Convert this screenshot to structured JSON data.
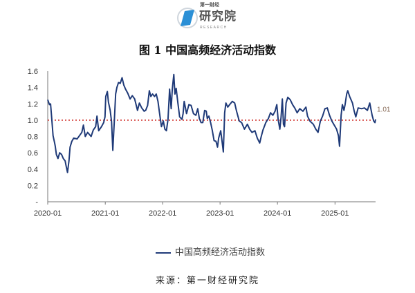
{
  "logo": {
    "line1": "第一财经",
    "line2": "研究院",
    "line3": "RESEARCH",
    "accent": "#2a8fd6"
  },
  "title": "图 1  中国高频经济活动指数",
  "source": "来源：第一财经研究院",
  "chart_data": {
    "type": "line",
    "title": "图 1  中国高频经济活动指数",
    "xlabel": "",
    "ylabel": "",
    "xlim": [
      "2020-01-01",
      "2025-09-16"
    ],
    "ylim": [
      0,
      1.6
    ],
    "x_ticks": [
      "2020-01",
      "2021-01",
      "2022-01",
      "2023-01",
      "2024-01",
      "2025-01"
    ],
    "y_ticks": [
      {
        "v": 0,
        "label": "-"
      },
      {
        "v": 0.2,
        "label": "0.2"
      },
      {
        "v": 0.4,
        "label": "0.4"
      },
      {
        "v": 0.6,
        "label": "0.6"
      },
      {
        "v": 0.8,
        "label": "0.8"
      },
      {
        "v": 1.0,
        "label": "1.0"
      },
      {
        "v": 1.2,
        "label": "1.2"
      },
      {
        "v": 1.4,
        "label": "1.4"
      },
      {
        "v": 1.6,
        "label": "1.6"
      }
    ],
    "grid": false,
    "legend": "bottom",
    "reference_line": {
      "y": 1.0,
      "color": "#d9534f",
      "style": "dotted"
    },
    "last_value_label": "1.01",
    "series": [
      {
        "name": "中国高频经济活动指数",
        "color": "#1f3a78",
        "points": [
          [
            "2020-01-01",
            1.25
          ],
          [
            "2020-01-12",
            1.19
          ],
          [
            "2020-01-19",
            1.2
          ],
          [
            "2020-01-27",
            1.01
          ],
          [
            "2020-02-04",
            0.81
          ],
          [
            "2020-02-14",
            0.72
          ],
          [
            "2020-02-18",
            0.68
          ],
          [
            "2020-02-25",
            0.58
          ],
          [
            "2020-03-06",
            0.53
          ],
          [
            "2020-03-17",
            0.6
          ],
          [
            "2020-03-29",
            0.58
          ],
          [
            "2020-04-09",
            0.53
          ],
          [
            "2020-04-21",
            0.5
          ],
          [
            "2020-04-28",
            0.43
          ],
          [
            "2020-05-06",
            0.36
          ],
          [
            "2020-05-15",
            0.5
          ],
          [
            "2020-05-22",
            0.67
          ],
          [
            "2020-06-02",
            0.74
          ],
          [
            "2020-06-14",
            0.78
          ],
          [
            "2020-07-06",
            0.77
          ],
          [
            "2020-07-21",
            0.81
          ],
          [
            "2020-08-05",
            0.85
          ],
          [
            "2020-08-15",
            0.94
          ],
          [
            "2020-08-27",
            0.8
          ],
          [
            "2020-09-11",
            0.85
          ],
          [
            "2020-10-03",
            0.8
          ],
          [
            "2020-10-17",
            0.88
          ],
          [
            "2020-11-01",
            0.92
          ],
          [
            "2020-11-09",
            1.05
          ],
          [
            "2020-11-20",
            0.87
          ],
          [
            "2020-12-08",
            0.92
          ],
          [
            "2020-12-22",
            0.97
          ],
          [
            "2020-12-30",
            1.04
          ],
          [
            "2021-01-04",
            1.29
          ],
          [
            "2021-01-14",
            1.35
          ],
          [
            "2021-01-21",
            1.22
          ],
          [
            "2021-02-01",
            1.12
          ],
          [
            "2021-02-10",
            0.98
          ],
          [
            "2021-02-18",
            0.63
          ],
          [
            "2021-02-28",
            1.01
          ],
          [
            "2021-03-08",
            1.32
          ],
          [
            "2021-03-16",
            1.4
          ],
          [
            "2021-03-26",
            1.46
          ],
          [
            "2021-04-06",
            1.45
          ],
          [
            "2021-04-18",
            1.52
          ],
          [
            "2021-04-29",
            1.43
          ],
          [
            "2021-05-10",
            1.38
          ],
          [
            "2021-05-24",
            1.33
          ],
          [
            "2021-06-08",
            1.26
          ],
          [
            "2021-06-22",
            1.3
          ],
          [
            "2021-07-07",
            1.26
          ],
          [
            "2021-07-25",
            1.12
          ],
          [
            "2021-08-06",
            1.21
          ],
          [
            "2021-08-21",
            1.15
          ],
          [
            "2021-09-05",
            1.11
          ],
          [
            "2021-09-15",
            1.12
          ],
          [
            "2021-09-27",
            1.18
          ],
          [
            "2021-10-08",
            1.36
          ],
          [
            "2021-10-18",
            1.29
          ],
          [
            "2021-10-29",
            1.32
          ],
          [
            "2021-11-10",
            1.29
          ],
          [
            "2021-11-21",
            1.32
          ],
          [
            "2021-12-02",
            1.23
          ],
          [
            "2021-12-12",
            1.09
          ],
          [
            "2021-12-24",
            0.92
          ],
          [
            "2022-01-05",
            0.99
          ],
          [
            "2022-01-15",
            0.89
          ],
          [
            "2022-01-25",
            0.87
          ],
          [
            "2022-02-04",
            1.01
          ],
          [
            "2022-02-14",
            1.38
          ],
          [
            "2022-02-24",
            1.14
          ],
          [
            "2022-03-03",
            1.38
          ],
          [
            "2022-03-13",
            1.56
          ],
          [
            "2022-03-20",
            1.32
          ],
          [
            "2022-03-28",
            1.39
          ],
          [
            "2022-04-08",
            1.21
          ],
          [
            "2022-04-19",
            1.04
          ],
          [
            "2022-05-04",
            1.01
          ],
          [
            "2022-05-11",
            1.08
          ],
          [
            "2022-05-18",
            1.23
          ],
          [
            "2022-06-02",
            1.08
          ],
          [
            "2022-06-17",
            1.19
          ],
          [
            "2022-07-01",
            1.18
          ],
          [
            "2022-07-16",
            1.08
          ],
          [
            "2022-07-31",
            1.06
          ],
          [
            "2022-08-12",
            1.14
          ],
          [
            "2022-08-22",
            1.02
          ],
          [
            "2022-09-02",
            0.97
          ],
          [
            "2022-09-13",
            0.97
          ],
          [
            "2022-09-25",
            1.12
          ],
          [
            "2022-10-05",
            1.11
          ],
          [
            "2022-10-12",
            1.02
          ],
          [
            "2022-10-22",
            1.05
          ],
          [
            "2022-11-02",
            0.97
          ],
          [
            "2022-11-12",
            0.88
          ],
          [
            "2022-11-24",
            0.75
          ],
          [
            "2022-12-06",
            0.74
          ],
          [
            "2022-12-16",
            0.67
          ],
          [
            "2022-12-23",
            0.78
          ],
          [
            "2023-01-05",
            0.87
          ],
          [
            "2023-01-13",
            0.75
          ],
          [
            "2023-01-22",
            0.61
          ],
          [
            "2023-01-30",
            1.09
          ],
          [
            "2023-02-07",
            1.21
          ],
          [
            "2023-02-19",
            1.16
          ],
          [
            "2023-03-03",
            1.19
          ],
          [
            "2023-03-20",
            1.23
          ],
          [
            "2023-04-04",
            1.21
          ],
          [
            "2023-04-16",
            1.11
          ],
          [
            "2023-05-03",
            0.99
          ],
          [
            "2023-05-18",
            0.97
          ],
          [
            "2023-06-05",
            0.89
          ],
          [
            "2023-06-24",
            0.95
          ],
          [
            "2023-07-08",
            0.89
          ],
          [
            "2023-07-23",
            0.85
          ],
          [
            "2023-08-11",
            0.87
          ],
          [
            "2023-08-26",
            0.78
          ],
          [
            "2023-09-10",
            0.72
          ],
          [
            "2023-09-20",
            0.8
          ],
          [
            "2023-10-01",
            0.88
          ],
          [
            "2023-10-19",
            0.97
          ],
          [
            "2023-11-04",
            1.02
          ],
          [
            "2023-11-18",
            1.09
          ],
          [
            "2023-12-03",
            1.06
          ],
          [
            "2023-12-17",
            1.11
          ],
          [
            "2023-12-28",
            1.19
          ],
          [
            "2024-01-05",
            1.01
          ],
          [
            "2024-01-16",
            0.89
          ],
          [
            "2024-01-24",
            1.04
          ],
          [
            "2024-02-01",
            1.26
          ],
          [
            "2024-02-08",
            0.95
          ],
          [
            "2024-02-15",
            0.92
          ],
          [
            "2024-02-25",
            1.21
          ],
          [
            "2024-03-07",
            1.28
          ],
          [
            "2024-03-22",
            1.25
          ],
          [
            "2024-04-06",
            1.19
          ],
          [
            "2024-04-20",
            1.15
          ],
          [
            "2024-05-05",
            1.09
          ],
          [
            "2024-05-22",
            1.14
          ],
          [
            "2024-06-11",
            1.11
          ],
          [
            "2024-06-30",
            1.16
          ],
          [
            "2024-07-10",
            1.05
          ],
          [
            "2024-07-25",
            0.99
          ],
          [
            "2024-08-16",
            0.95
          ],
          [
            "2024-09-01",
            0.89
          ],
          [
            "2024-09-15",
            0.85
          ],
          [
            "2024-09-30",
            0.99
          ],
          [
            "2024-10-14",
            1.05
          ],
          [
            "2024-10-29",
            1.14
          ],
          [
            "2024-11-13",
            1.15
          ],
          [
            "2024-11-27",
            1.06
          ],
          [
            "2024-12-12",
            0.99
          ],
          [
            "2024-12-27",
            0.94
          ],
          [
            "2025-01-11",
            0.89
          ],
          [
            "2025-01-23",
            0.81
          ],
          [
            "2025-01-30",
            0.68
          ],
          [
            "2025-02-09",
            1.06
          ],
          [
            "2025-02-17",
            1.19
          ],
          [
            "2025-02-27",
            1.12
          ],
          [
            "2025-03-06",
            1.19
          ],
          [
            "2025-03-16",
            1.32
          ],
          [
            "2025-03-23",
            1.36
          ],
          [
            "2025-04-04",
            1.29
          ],
          [
            "2025-04-22",
            1.21
          ],
          [
            "2025-05-03",
            1.11
          ],
          [
            "2025-05-13",
            1.04
          ],
          [
            "2025-05-28",
            1.15
          ],
          [
            "2025-06-19",
            1.14
          ],
          [
            "2025-07-07",
            1.15
          ],
          [
            "2025-07-26",
            1.12
          ],
          [
            "2025-08-10",
            1.21
          ],
          [
            "2025-08-25",
            1.06
          ],
          [
            "2025-09-04",
            0.99
          ],
          [
            "2025-09-12",
            0.97
          ],
          [
            "2025-09-16",
            1.01
          ]
        ]
      }
    ]
  }
}
